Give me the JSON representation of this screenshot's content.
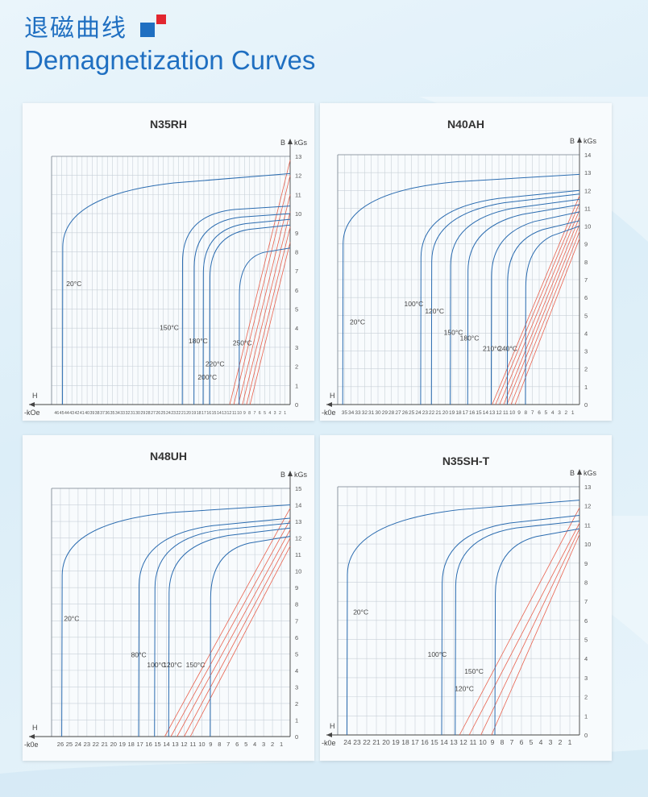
{
  "header": {
    "title_cn": "退磁曲线",
    "title_en": "Demagnetization Curves",
    "logo_colors": {
      "primary": "#1f6fc1",
      "accent": "#e2262f"
    }
  },
  "colors": {
    "curve": "#2b6cb0",
    "load_line": "#e8614d",
    "grid": "#c8d0d8",
    "frame": "#7a8590"
  },
  "chart_data": [
    {
      "type": "line",
      "title": "N35RH",
      "xlabel": "H",
      "xunit": "-kOe",
      "ylabel": "B",
      "yunit": "kGs",
      "xlim": [
        0,
        47
      ],
      "ylim": [
        0,
        13
      ],
      "x_ticks": [
        "46",
        "45",
        "44",
        "43",
        "42",
        "41",
        "40",
        "39",
        "38",
        "37",
        "36",
        "35",
        "34",
        "33",
        "32",
        "31",
        "30",
        "29",
        "28",
        "27",
        "26",
        "25",
        "24",
        "23",
        "22",
        "21",
        "20",
        "19",
        "18",
        "17",
        "16",
        "15",
        "14",
        "13",
        "12",
        "11",
        "10",
        "9",
        "8",
        "7",
        "6",
        "5",
        "4",
        "3",
        "2",
        "1"
      ],
      "y_ticks": [
        "0",
        "1",
        "2",
        "3",
        "4",
        "5",
        "6",
        "7",
        "8",
        "9",
        "10",
        "11",
        "12",
        "13"
      ],
      "curves": [
        {
          "label": "20°C",
          "br": 12.1,
          "hcj": 44.8,
          "knee": 11.0
        },
        {
          "label": "150°C",
          "br": 10.4,
          "hcj": 21.2,
          "knee": 10.0
        },
        {
          "label": "180°C",
          "br": 10.0,
          "hcj": 18.9,
          "knee": 9.6
        },
        {
          "label": "200°C",
          "br": 9.7,
          "hcj": 17.1,
          "knee": 9.2
        },
        {
          "label": "220°C",
          "br": 9.4,
          "hcj": 15.8,
          "knee": 8.9
        },
        {
          "label": "250°C",
          "br": 8.2,
          "hcj": 10.0,
          "knee": 7.7
        }
      ],
      "curve_labels": [
        {
          "text": "20°C",
          "x": 44.1,
          "y": 6.2
        },
        {
          "text": "150°C",
          "x": 25.7,
          "y": 3.9
        },
        {
          "text": "180°C",
          "x": 20.0,
          "y": 3.2
        },
        {
          "text": "200°C",
          "x": 18.2,
          "y": 1.3
        },
        {
          "text": "220°C",
          "x": 16.7,
          "y": 2.0
        },
        {
          "text": "250°C",
          "x": 11.3,
          "y": 3.1
        }
      ],
      "load_lines": [
        {
          "from": [
            11.9,
            0
          ],
          "to": [
            0,
            12.8
          ]
        },
        {
          "from": [
            11.1,
            0
          ],
          "to": [
            0,
            12.0
          ]
        },
        {
          "from": [
            10.2,
            0
          ],
          "to": [
            0,
            11.0
          ]
        },
        {
          "from": [
            9.4,
            0
          ],
          "to": [
            0,
            10.1
          ]
        },
        {
          "from": [
            8.6,
            0
          ],
          "to": [
            0,
            9.3
          ]
        },
        {
          "from": [
            7.9,
            0
          ],
          "to": [
            0,
            8.5
          ]
        }
      ]
    },
    {
      "type": "line",
      "title": "N40AH",
      "xlabel": "H",
      "xunit": "-k0e",
      "ylabel": "B",
      "yunit": "kGs",
      "xlim": [
        0,
        36
      ],
      "ylim": [
        0,
        14
      ],
      "x_ticks": [
        "35",
        "34",
        "33",
        "32",
        "31",
        "30",
        "29",
        "28",
        "27",
        "26",
        "25",
        "24",
        "23",
        "22",
        "21",
        "20",
        "19",
        "18",
        "17",
        "16",
        "15",
        "14",
        "13",
        "12",
        "11",
        "10",
        "9",
        "8",
        "7",
        "6",
        "5",
        "4",
        "3",
        "2",
        "1"
      ],
      "y_ticks": [
        "0",
        "1",
        "2",
        "3",
        "4",
        "5",
        "6",
        "7",
        "8",
        "9",
        "10",
        "11",
        "12",
        "13",
        "14"
      ],
      "curves": [
        {
          "label": "20°C",
          "br": 12.9,
          "hcj": 35.2,
          "knee": 12.0
        },
        {
          "label": "100°C",
          "br": 12.0,
          "hcj": 23.6,
          "knee": 11.0
        },
        {
          "label": "120°C",
          "br": 11.8,
          "hcj": 22.0,
          "knee": 10.7
        },
        {
          "label": "150°C",
          "br": 11.5,
          "hcj": 19.2,
          "knee": 10.4
        },
        {
          "label": "180°C",
          "br": 11.2,
          "hcj": 16.6,
          "knee": 10.0
        },
        {
          "label": "210°C",
          "br": 10.8,
          "hcj": 13.1,
          "knee": 9.6
        },
        {
          "label": "240°C",
          "br": 10.3,
          "hcj": 10.7,
          "knee": 9.2
        },
        {
          "label": "",
          "br": 10.0,
          "hcj": 8.0,
          "knee": 8.8
        }
      ],
      "curve_labels": [
        {
          "text": "20°C",
          "x": 34.2,
          "y": 4.5
        },
        {
          "text": "100°C",
          "x": 26.1,
          "y": 5.5
        },
        {
          "text": "120°C",
          "x": 23.0,
          "y": 5.1
        },
        {
          "text": "150°C",
          "x": 20.2,
          "y": 3.9
        },
        {
          "text": "180°C",
          "x": 17.8,
          "y": 3.6
        },
        {
          "text": "210°C",
          "x": 14.4,
          "y": 3.0
        },
        {
          "text": "240°C",
          "x": 12.1,
          "y": 3.0
        }
      ],
      "load_lines": [
        {
          "from": [
            13.0,
            0
          ],
          "to": [
            0,
            11.7
          ]
        },
        {
          "from": [
            12.5,
            0
          ],
          "to": [
            0,
            11.3
          ]
        },
        {
          "from": [
            11.9,
            0
          ],
          "to": [
            0,
            10.9
          ]
        },
        {
          "from": [
            11.3,
            0
          ],
          "to": [
            0,
            10.5
          ]
        },
        {
          "from": [
            10.8,
            0
          ],
          "to": [
            0,
            10.1
          ]
        },
        {
          "from": [
            10.2,
            0
          ],
          "to": [
            0,
            9.7
          ]
        },
        {
          "from": [
            9.6,
            0
          ],
          "to": [
            0,
            9.3
          ]
        }
      ]
    },
    {
      "type": "line",
      "title": "N48UH",
      "xlabel": "H",
      "xunit": "-k0e",
      "ylabel": "B",
      "yunit": "kGs",
      "xlim": [
        0,
        27
      ],
      "ylim": [
        0,
        15
      ],
      "x_ticks": [
        "26",
        "25",
        "24",
        "23",
        "22",
        "21",
        "20",
        "19",
        "18",
        "17",
        "16",
        "15",
        "14",
        "13",
        "12",
        "11",
        "10",
        "9",
        "8",
        "7",
        "6",
        "5",
        "4",
        "3",
        "2",
        "1"
      ],
      "y_ticks": [
        "0",
        "1",
        "2",
        "3",
        "4",
        "5",
        "6",
        "7",
        "8",
        "9",
        "10",
        "11",
        "12",
        "13",
        "14",
        "15"
      ],
      "curves": [
        {
          "label": "20°C",
          "br": 14.0,
          "hcj": 25.8,
          "knee": 13.0
        },
        {
          "label": "80°C",
          "br": 13.2,
          "hcj": 17.1,
          "knee": 12.2
        },
        {
          "label": "100°C",
          "br": 12.9,
          "hcj": 15.3,
          "knee": 12.0
        },
        {
          "label": "120°C",
          "br": 12.6,
          "hcj": 13.7,
          "knee": 11.6
        },
        {
          "label": "150°C",
          "br": 12.1,
          "hcj": 9.0,
          "knee": 11.2
        }
      ],
      "curve_labels": [
        {
          "text": "20°C",
          "x": 25.6,
          "y": 7.0
        },
        {
          "text": "80°C",
          "x": 18.0,
          "y": 4.8
        },
        {
          "text": "100°C",
          "x": 16.2,
          "y": 4.2
        },
        {
          "text": "120°C",
          "x": 14.4,
          "y": 4.2
        },
        {
          "text": "150°C",
          "x": 11.8,
          "y": 4.2
        }
      ],
      "load_lines": [
        {
          "from": [
            14.2,
            0
          ],
          "to": [
            0,
            13.8
          ]
        },
        {
          "from": [
            13.5,
            0
          ],
          "to": [
            0,
            13.1
          ]
        },
        {
          "from": [
            12.8,
            0
          ],
          "to": [
            0,
            12.5
          ]
        },
        {
          "from": [
            12.0,
            0
          ],
          "to": [
            0,
            12.0
          ]
        },
        {
          "from": [
            11.3,
            0
          ],
          "to": [
            0,
            11.5
          ]
        }
      ]
    },
    {
      "type": "line",
      "title": "N35SH-T",
      "xlabel": "H",
      "xunit": "-k0e",
      "ylabel": "B",
      "yunit": "kGs",
      "xlim": [
        0,
        25
      ],
      "ylim": [
        0,
        13
      ],
      "x_ticks": [
        "24",
        "23",
        "22",
        "21",
        "20",
        "19",
        "18",
        "17",
        "16",
        "15",
        "14",
        "13",
        "12",
        "11",
        "10",
        "9",
        "8",
        "7",
        "6",
        "5",
        "4",
        "3",
        "2",
        "1"
      ],
      "y_ticks": [
        "0",
        "1",
        "2",
        "3",
        "4",
        "5",
        "6",
        "7",
        "8",
        "9",
        "10",
        "11",
        "12",
        "13"
      ],
      "curves": [
        {
          "label": "20°C",
          "br": 12.3,
          "hcj": 24.0,
          "knee": 11.2
        },
        {
          "label": "100°C",
          "br": 11.5,
          "hcj": 14.2,
          "knee": 10.6
        },
        {
          "label": "120°C",
          "br": 11.2,
          "hcj": 12.8,
          "knee": 10.4
        },
        {
          "label": "150°C",
          "br": 10.8,
          "hcj": 8.7,
          "knee": 9.9
        }
      ],
      "curve_labels": [
        {
          "text": "20°C",
          "x": 23.4,
          "y": 6.3
        },
        {
          "text": "100°C",
          "x": 15.7,
          "y": 4.1
        },
        {
          "text": "120°C",
          "x": 12.9,
          "y": 2.3
        },
        {
          "text": "150°C",
          "x": 11.9,
          "y": 3.2
        }
      ],
      "load_lines": [
        {
          "from": [
            12.4,
            0
          ],
          "to": [
            0,
            11.9
          ]
        },
        {
          "from": [
            11.4,
            0
          ],
          "to": [
            0,
            11.1
          ]
        },
        {
          "from": [
            10.2,
            0
          ],
          "to": [
            0,
            10.8
          ]
        },
        {
          "from": [
            9.1,
            0
          ],
          "to": [
            0,
            10.5
          ]
        }
      ]
    }
  ]
}
